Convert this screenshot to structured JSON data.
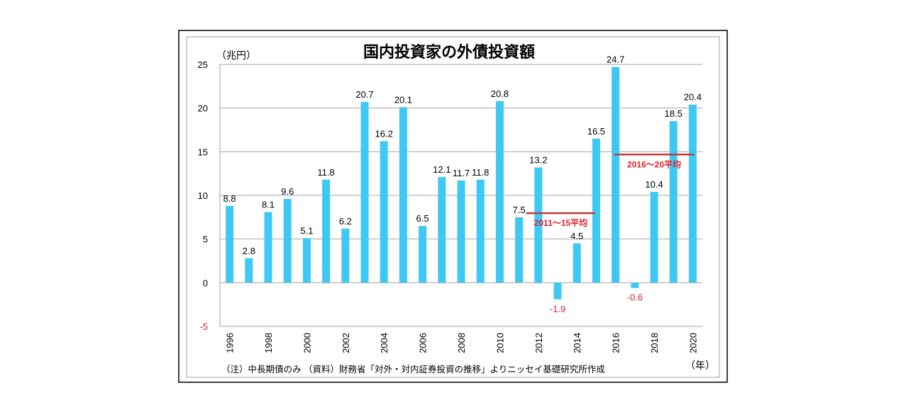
{
  "chart_data": {
    "type": "bar",
    "title": "国内投資家の外債投資額",
    "ylabel": "（兆円）",
    "xlabel": "（年）",
    "ylim": [
      -5,
      25
    ],
    "yticks": [
      25,
      20,
      15,
      10,
      5,
      0,
      -5
    ],
    "grid": true,
    "categories": [
      "1996",
      "1997",
      "1998",
      "1999",
      "2000",
      "2001",
      "2002",
      "2003",
      "2004",
      "2005",
      "2006",
      "2007",
      "2008",
      "2009",
      "2010",
      "2011",
      "2012",
      "2013",
      "2014",
      "2015",
      "2016",
      "2017",
      "2018",
      "2019",
      "2020"
    ],
    "xtick_labels": [
      "1996",
      "1998",
      "2000",
      "2002",
      "2004",
      "2006",
      "2008",
      "2010",
      "2012",
      "2014",
      "2016",
      "2018",
      "2020"
    ],
    "values": [
      8.8,
      2.8,
      8.1,
      9.6,
      5.1,
      11.8,
      6.2,
      20.7,
      16.2,
      20.1,
      6.5,
      12.1,
      11.7,
      11.8,
      20.8,
      7.5,
      13.2,
      -1.9,
      4.5,
      16.5,
      24.7,
      -0.6,
      10.4,
      18.5,
      20.4
    ],
    "data_labels": [
      "8.8",
      "2.8",
      "8.1",
      "9.6",
      "5.1",
      "11.8",
      "6.2",
      "20.7",
      "16.2",
      "20.1",
      "6.5",
      "12.1",
      "11.7",
      "11.8",
      "20.8",
      "7.5",
      "13.2",
      "-1.9",
      "4.5",
      "16.5",
      "24.7",
      "-0.6",
      "10.4",
      "18.5",
      "20.4"
    ],
    "averages": [
      {
        "label": "2011～15平均",
        "value": 7.96,
        "from": "2011",
        "to": "2014"
      },
      {
        "label": "2016～20平均",
        "value": 14.68,
        "from": "2016",
        "to": "2020"
      }
    ],
    "note": "（注）中長期債のみ （資料）財務省「対外・対内証券投資の推移」よりニッセイ基礎研究所作成",
    "colors": {
      "bar": "#3EC8F4",
      "average": "#C0393B",
      "negative_label": "#E0202A",
      "grid": "#A6A6A6"
    }
  }
}
